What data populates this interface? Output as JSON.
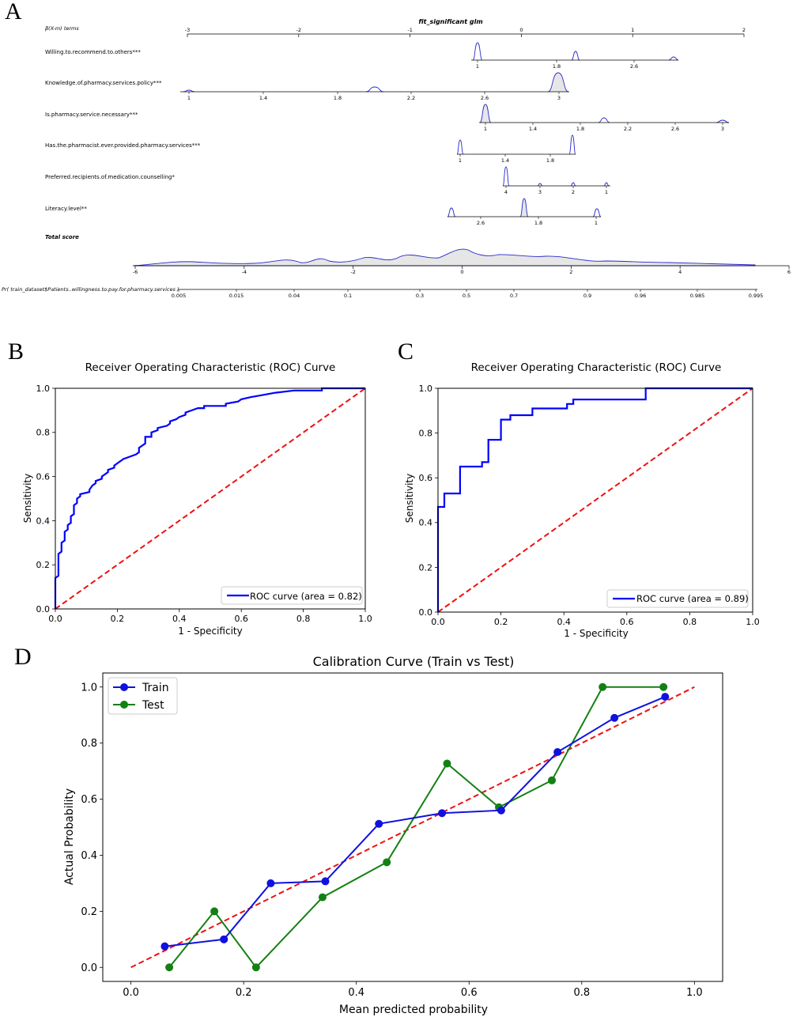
{
  "panel_labels": {
    "a": "A",
    "b": "B",
    "c": "C",
    "d": "D"
  },
  "colors": {
    "roc": "#0000ff",
    "diag": "#ee1111",
    "train": "#1010e0",
    "test": "#138013",
    "density": "#2a2acc",
    "fill": "#e6e6e6"
  },
  "chart_data": [
    {
      "id": "nomogram",
      "type": "nomogram",
      "title": "fit_significant glm",
      "header_label": "β(X-m) terms",
      "beta_axis": {
        "min": -3,
        "max": 2,
        "ticks": [
          "-3",
          "-2",
          "-1",
          "0",
          "1",
          "2"
        ]
      },
      "rows": [
        {
          "label": "Willing.to.recommend.to.others***",
          "ticks": [
            "1",
            "1.8",
            "2.6"
          ]
        },
        {
          "label": "Knowledge.of.pharmacy.services.policy***",
          "ticks": [
            "1",
            "1.4",
            "1.8",
            "2.2",
            "2.6",
            "3"
          ]
        },
        {
          "label": "Is.pharmacy.service.necessary***",
          "ticks": [
            "1",
            "1.4",
            "1.8",
            "2.2",
            "2.6",
            "3"
          ]
        },
        {
          "label": "Has.the.pharmacist.ever.provided.pharmacy.services***",
          "ticks": [
            "1",
            "1.4",
            "1.8"
          ]
        },
        {
          "label": "Preferred.recipients.of.medication.counselling*",
          "ticks": [
            "4",
            "3",
            "2",
            "1"
          ]
        },
        {
          "label": "Literacy.level**",
          "ticks": [
            "2.6",
            "1.8",
            "1"
          ]
        }
      ],
      "total_label": "Total score",
      "total_axis": {
        "min": -6,
        "max": 6,
        "ticks": [
          "-6",
          "-4",
          "-2",
          "0",
          "2",
          "4",
          "6"
        ]
      },
      "prob_label": "Pr( train_dataset$Patients..willingness.to.pay.for.pharmacy.services )",
      "prob_ticks": [
        "0.005",
        "0.015",
        "0.04",
        "0.1",
        "0.3",
        "0.5",
        "0.7",
        "0.9",
        "0.96",
        "0.985",
        "0.995"
      ]
    },
    {
      "id": "roc_train",
      "type": "line",
      "title": "Receiver Operating Characteristic (ROC) Curve",
      "xlabel": "1 - Specificity",
      "ylabel": "Sensitivity",
      "xlim": [
        0,
        1
      ],
      "ylim": [
        0,
        1
      ],
      "ticks": [
        "0.0",
        "0.2",
        "0.4",
        "0.6",
        "0.8",
        "1.0"
      ],
      "legend": "ROC curve (area = 0.82)",
      "auc": 0.82,
      "fpr": [
        0,
        0,
        0.01,
        0.01,
        0.02,
        0.02,
        0.03,
        0.03,
        0.04,
        0.04,
        0.05,
        0.05,
        0.06,
        0.06,
        0.07,
        0.07,
        0.08,
        0.08,
        0.11,
        0.11,
        0.12,
        0.13,
        0.13,
        0.15,
        0.15,
        0.17,
        0.17,
        0.19,
        0.19,
        0.2,
        0.21,
        0.22,
        0.24,
        0.26,
        0.27,
        0.27,
        0.29,
        0.29,
        0.31,
        0.31,
        0.33,
        0.33,
        0.36,
        0.37,
        0.37,
        0.39,
        0.4,
        0.42,
        0.42,
        0.44,
        0.46,
        0.48,
        0.48,
        0.55,
        0.55,
        0.59,
        0.6,
        0.63,
        0.67,
        0.71,
        0.71,
        0.77,
        0.77,
        0.86,
        0.86,
        0.9,
        0.9,
        1.0
      ],
      "tpr": [
        0,
        0.14,
        0.15,
        0.25,
        0.26,
        0.3,
        0.31,
        0.35,
        0.36,
        0.38,
        0.39,
        0.42,
        0.43,
        0.47,
        0.48,
        0.5,
        0.51,
        0.52,
        0.53,
        0.54,
        0.56,
        0.57,
        0.58,
        0.59,
        0.6,
        0.62,
        0.63,
        0.64,
        0.65,
        0.66,
        0.67,
        0.68,
        0.69,
        0.7,
        0.71,
        0.73,
        0.75,
        0.78,
        0.78,
        0.8,
        0.81,
        0.82,
        0.83,
        0.84,
        0.85,
        0.86,
        0.87,
        0.88,
        0.89,
        0.9,
        0.91,
        0.91,
        0.92,
        0.92,
        0.93,
        0.94,
        0.95,
        0.96,
        0.97,
        0.98,
        0.98,
        0.99,
        0.99,
        0.99,
        1.0,
        1.0,
        1.0,
        1.0
      ]
    },
    {
      "id": "roc_test",
      "type": "line",
      "title": "Receiver Operating Characteristic (ROC) Curve",
      "xlabel": "1 - Specificity",
      "ylabel": "Sensitivity",
      "xlim": [
        0,
        1
      ],
      "ylim": [
        0,
        1
      ],
      "ticks": [
        "0.0",
        "0.2",
        "0.4",
        "0.6",
        "0.8",
        "1.0"
      ],
      "legend": "ROC curve (area = 0.89)",
      "auc": 0.89,
      "fpr": [
        0,
        0,
        0.02,
        0.02,
        0.07,
        0.07,
        0.14,
        0.14,
        0.16,
        0.16,
        0.2,
        0.2,
        0.23,
        0.23,
        0.3,
        0.3,
        0.41,
        0.41,
        0.43,
        0.43,
        0.66,
        0.66,
        1.0
      ],
      "tpr": [
        0,
        0.47,
        0.47,
        0.53,
        0.53,
        0.65,
        0.65,
        0.67,
        0.67,
        0.77,
        0.77,
        0.86,
        0.86,
        0.88,
        0.88,
        0.91,
        0.91,
        0.93,
        0.93,
        0.95,
        0.95,
        1.0,
        1.0
      ]
    },
    {
      "id": "calibration",
      "type": "line",
      "title": "Calibration Curve (Train vs Test)",
      "xlabel": "Mean predicted probability",
      "ylabel": "Actual Probability",
      "xlim": [
        -0.05,
        1.05
      ],
      "ylim": [
        -0.05,
        1.05
      ],
      "ticks": [
        "0.0",
        "0.2",
        "0.4",
        "0.6",
        "0.8",
        "1.0"
      ],
      "series": [
        {
          "name": "Train",
          "x": [
            0.06,
            0.165,
            0.248,
            0.345,
            0.44,
            0.552,
            0.657,
            0.757,
            0.858,
            0.948
          ],
          "y": [
            0.075,
            0.1,
            0.3,
            0.307,
            0.512,
            0.55,
            0.56,
            0.768,
            0.89,
            0.965
          ]
        },
        {
          "name": "Test",
          "x": [
            0.068,
            0.148,
            0.222,
            0.34,
            0.454,
            0.561,
            0.653,
            0.747,
            0.837,
            0.945
          ],
          "y": [
            0.0,
            0.2,
            0.0,
            0.25,
            0.375,
            0.727,
            0.571,
            0.667,
            1.0,
            1.0
          ]
        }
      ]
    }
  ]
}
